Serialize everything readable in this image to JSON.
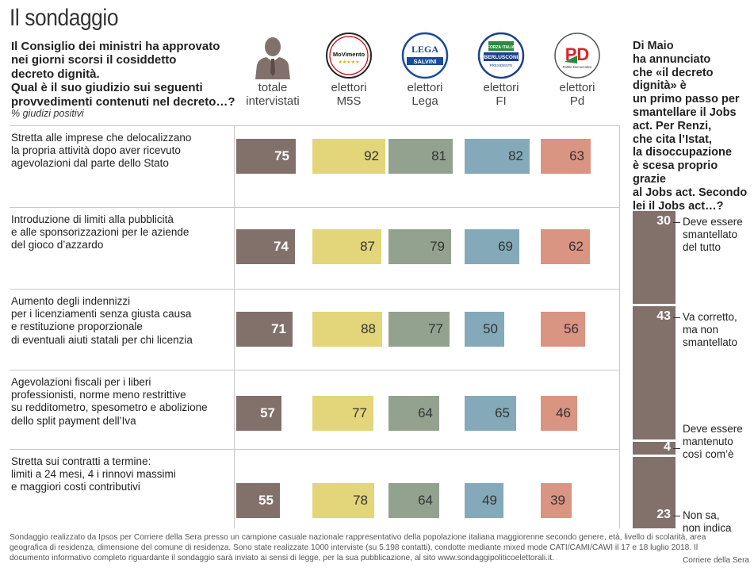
{
  "title": "Il sondaggio",
  "question": "Il Consiglio dei ministri ha approvato nei giorni scorsi il cosiddetto decreto dignità. Qual è il suo giudizio sui seguenti provvedimenti contenuti nel decreto…?",
  "question_note": "% giudizi positivi",
  "colors": {
    "totale": "#82706b",
    "m5s": "#e3d579",
    "lega": "#92a28e",
    "fi": "#84a9b8",
    "pd": "#da9482",
    "separator": "#c8c8c8"
  },
  "columns": [
    {
      "key": "totale",
      "line1": "totale",
      "line2": "intervistati",
      "icon": "person-silhouette-icon"
    },
    {
      "key": "m5s",
      "line1": "elettori",
      "line2": "M5S",
      "icon": "m5s-logo-icon"
    },
    {
      "key": "lega",
      "line1": "elettori",
      "line2": "Lega",
      "icon": "lega-logo-icon"
    },
    {
      "key": "fi",
      "line1": "elettori",
      "line2": "FI",
      "icon": "forza-italia-logo-icon"
    },
    {
      "key": "pd",
      "line1": "elettori",
      "line2": "Pd",
      "icon": "pd-logo-icon"
    }
  ],
  "logos": {
    "m5s": "MoVimento",
    "lega_top": "LEGA",
    "lega_bottom": "SALVINI",
    "fi_top": "FORZA ITALIA",
    "fi_mid": "BERLUSCONI",
    "fi_bottom": "PRESIDENTE",
    "pd_big": "PD",
    "pd_small": "Partito Democratico"
  },
  "chart_data": [
    {
      "type": "bar",
      "title": "Il sondaggio",
      "ylabel": "% giudizi positivi",
      "categories": [
        "Stretta alle imprese che delocalizzano la propria attività dopo aver ricevuto agevolazioni dal parte dello Stato",
        "Introduzione di limiti alla pubblicità e alle sponsorizzazioni per le aziende del gioco d’azzardo",
        "Aumento degli indennizzi per i licenziamenti senza giusta causa e restituzione proporzionale di eventuali aiuti statali per chi licenzia",
        "Agevolazioni fiscali per i liberi professionisti, norme meno restrittive su redditometro, spesometro e abolizione dello split payment dell’Iva",
        "Stretta sui contratti a termine: limiti a 24 mesi, 4 i rinnovi massimi e maggiori costi contributivi"
      ],
      "category_lines": [
        [
          "Stretta alle imprese che delocalizzano",
          "la propria attività dopo aver ricevuto",
          "agevolazioni dal parte dello Stato"
        ],
        [
          "Introduzione di limiti alla pubblicità",
          "e alle sponsorizzazioni per le aziende",
          "del gioco d’azzardo"
        ],
        [
          "Aumento degli indennizzi",
          "per i licenziamenti senza giusta causa",
          "e restituzione proporzionale",
          "di eventuali aiuti statali per chi licenzia"
        ],
        [
          "Agevolazioni fiscali per i liberi",
          "professionisti, norme meno restrittive",
          "su redditometro, spesometro e abolizione",
          "dello split payment dell’Iva"
        ],
        [
          "Stretta sui contratti a termine:",
          "limiti a 24 mesi, 4 i rinnovi massimi",
          "e maggiori costi contributivi"
        ]
      ],
      "series": [
        {
          "name": "totale intervistati",
          "key": "totale",
          "values": [
            75,
            74,
            71,
            57,
            55
          ]
        },
        {
          "name": "elettori M5S",
          "key": "m5s",
          "values": [
            92,
            87,
            88,
            77,
            78
          ]
        },
        {
          "name": "elettori Lega",
          "key": "lega",
          "values": [
            81,
            79,
            77,
            64,
            64
          ]
        },
        {
          "name": "elettori FI",
          "key": "fi",
          "values": [
            82,
            69,
            50,
            65,
            49
          ]
        },
        {
          "name": "elettori Pd",
          "key": "pd",
          "values": [
            63,
            62,
            56,
            46,
            39
          ]
        }
      ],
      "ylim": [
        0,
        100
      ],
      "grid": false
    },
    {
      "type": "bar",
      "title": "Di Maio ha annunciato che «il decreto dignità» è un primo passo per smantellare il Jobs act. Per Renzi, che cita l’Istat, la disoccupazione è scesa proprio grazie al Jobs act. Secondo lei il Jobs act…?",
      "stacked": true,
      "categories": [
        "Deve essere smantellato del tutto",
        "Va corretto, ma non smantellato",
        "Deve essere mantenuto così com’è",
        "Non sa, non indica"
      ],
      "category_lines": [
        [
          "Deve essere",
          "smantellato",
          "del tutto"
        ],
        [
          "Va corretto,",
          "ma non",
          "smantellato"
        ],
        [
          "Deve essere",
          "mantenuto",
          "così com’è"
        ],
        [
          "Non sa,",
          "non indica"
        ]
      ],
      "values": [
        30,
        43,
        4,
        23
      ],
      "ylim": [
        0,
        100
      ]
    }
  ],
  "side_question_lines": [
    "Di Maio",
    "ha annunciato",
    "che «il decreto",
    "dignità» è",
    "un primo passo per",
    "smantellare il Jobs",
    "act. Per Renzi,",
    "che cita l’Istat,",
    "la disoccupazione",
    "è scesa proprio grazie",
    "al Jobs act. Secondo",
    "lei il Jobs act…?"
  ],
  "question_lines": [
    "Il Consiglio dei ministri ha approvato",
    "nei giorni scorsi il cosiddetto",
    "decreto dignità.",
    "Qual è il suo giudizio sui seguenti",
    "provvedimenti contenuti nel decreto…?"
  ],
  "footer": "Sondaggio realizzato da Ipsos per Corriere della Sera presso un campione casuale nazionale rappresentativo della popolazione italiana maggiorenne secondo genere, età, livello di scolarità, area geografica di residenza, dimensione del comune di residenza. Sono state realizzate 1000  interviste (su 5.198 contatti), condotte mediante mixed mode CATI/CAMI/CAWI  il 17 e 18 luglio 2018. Il documento informativo completo riguardante il sondaggio sarà inviato ai sensi di legge, per la sua pubblicazione, al sito www.sondaggipoliticoelettorali.it.",
  "credit": "Corriere della Sera"
}
